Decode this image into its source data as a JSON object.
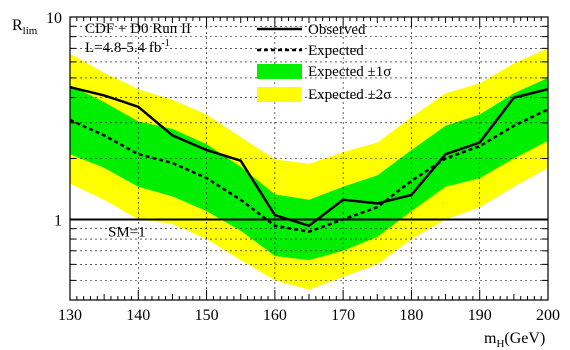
{
  "chart_data": {
    "type": "line",
    "ylabel_main": "R",
    "ylabel_sub": "lim",
    "xlabel_main": "m",
    "xlabel_sub": "H",
    "xlabel_unit": "(GeV)",
    "xlim": [
      130,
      200
    ],
    "ylim": [
      0.4,
      10
    ],
    "yscale": "log",
    "grid": true,
    "legend_position": "top",
    "annotation": {
      "line1": "CDF + D0 Run II",
      "line2_main": "L=4.8-5.4 fb",
      "line2_sup": "-1"
    },
    "x_ticks": [
      130,
      140,
      150,
      160,
      170,
      180,
      190,
      200
    ],
    "x_tick_labels": [
      "130",
      "140",
      "150",
      "160",
      "170",
      "180",
      "190",
      "200"
    ],
    "y_ticks": [
      1,
      10
    ],
    "y_tick_labels": [
      "1",
      "10"
    ],
    "x": [
      130,
      135,
      140,
      145,
      150,
      155,
      160,
      165,
      170,
      175,
      180,
      185,
      190,
      195,
      200
    ],
    "series": [
      {
        "name": "Observed",
        "style": "solid",
        "values": [
          4.5,
          4.1,
          3.6,
          2.6,
          2.2,
          1.95,
          1.05,
          0.93,
          1.25,
          1.2,
          1.32,
          2.1,
          2.4,
          4.0,
          4.4
        ]
      },
      {
        "name": "Expected",
        "style": "dashed",
        "values": [
          3.1,
          2.6,
          2.1,
          1.9,
          1.6,
          1.25,
          0.93,
          0.87,
          1.0,
          1.15,
          1.55,
          2.0,
          2.3,
          2.9,
          3.5
        ]
      }
    ],
    "bands": [
      {
        "name": "Expected ±1σ",
        "color": "#00ee00",
        "lower": [
          2.1,
          1.8,
          1.45,
          1.3,
          1.1,
          0.88,
          0.66,
          0.63,
          0.7,
          0.82,
          1.1,
          1.45,
          1.6,
          2.0,
          2.45
        ],
        "upper": [
          4.6,
          3.8,
          3.05,
          2.8,
          2.35,
          1.82,
          1.33,
          1.25,
          1.45,
          1.65,
          2.2,
          2.9,
          3.3,
          4.2,
          5.0
        ]
      },
      {
        "name": "Expected ±2σ",
        "color": "#ffff00",
        "lower": [
          1.5,
          1.25,
          1.0,
          0.95,
          0.8,
          0.63,
          0.5,
          0.45,
          0.52,
          0.6,
          0.8,
          1.0,
          1.15,
          1.45,
          1.8
        ],
        "upper": [
          6.6,
          5.3,
          4.4,
          3.9,
          3.3,
          2.55,
          1.98,
          1.88,
          2.15,
          2.4,
          3.2,
          4.2,
          4.7,
          5.9,
          7.0
        ]
      }
    ],
    "reference_line": {
      "y": 1,
      "label": "SM=1"
    },
    "legend": {
      "observed": "Observed",
      "expected": "Expected",
      "band1": "Expected ±1σ",
      "band2": "Expected ±2σ"
    },
    "colors": {
      "band1": "#00ee00",
      "band2": "#ffff00",
      "line": "#000000"
    }
  }
}
